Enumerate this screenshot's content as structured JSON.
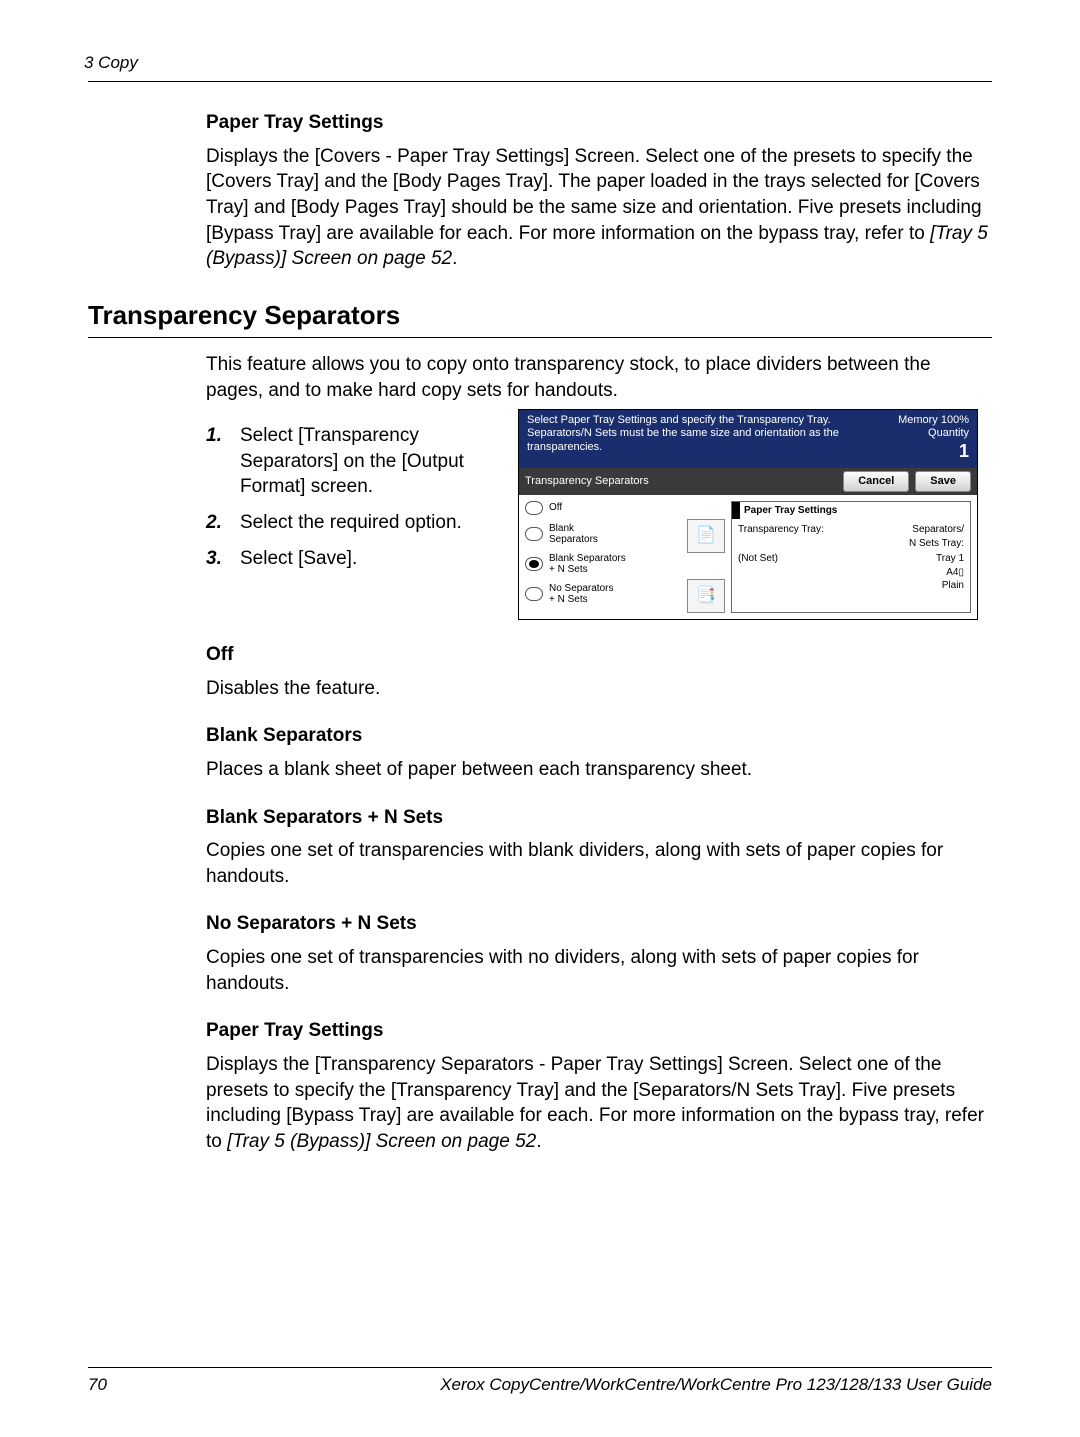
{
  "header": {
    "chapter": "3 Copy"
  },
  "pts1": {
    "heading": "Paper Tray Settings",
    "body": "Displays the [Covers - Paper Tray Settings] Screen. Select one of the presets to specify the [Covers Tray] and the [Body Pages Tray]. The paper loaded in the trays selected for [Covers Tray] and [Body Pages Tray] should be the same size and orientation. Five presets including [Bypass Tray] are available for each. For more information on the bypass tray, refer to ",
    "ref": "[Tray 5 (Bypass)] Screen on page 52",
    "tail": "."
  },
  "section": {
    "title": "Transparency Separators"
  },
  "intro": "This feature allows you to copy onto transparency stock, to place dividers between the pages, and to make hard copy sets for handouts.",
  "steps": [
    {
      "n": "1.",
      "t": "Select [Transparency Separators] on the [Output Format] screen."
    },
    {
      "n": "2.",
      "t": "Select the required option."
    },
    {
      "n": "3.",
      "t": "Select [Save]."
    }
  ],
  "screenshot": {
    "topText": "Select Paper Tray Settings and specify the Transparency Tray. Separators/N Sets must be the same size and orientation as the transparencies.",
    "memory": "Memory 100%",
    "quantityLabel": "Quantity",
    "quantityValue": "1",
    "barTitle": "Transparency Separators",
    "cancel": "Cancel",
    "save": "Save",
    "opts": {
      "off": "Off",
      "blank": "Blank\nSeparators",
      "blankN": "Blank Separators\n+ N Sets",
      "noSep": "No Separators\n+ N Sets"
    },
    "ptsHeader": "Paper Tray Settings",
    "row1k": "Transparency Tray:",
    "row1v": "Separators/\nN Sets Tray:",
    "row2k": "(Not Set)",
    "row2v": "Tray 1\nA4▯\nPlain"
  },
  "off": {
    "heading": "Off",
    "body": "Disables the feature."
  },
  "bs": {
    "heading": "Blank Separators",
    "body": "Places a blank sheet of paper between each transparency sheet."
  },
  "bsn": {
    "heading": "Blank Separators + N Sets",
    "body": "Copies one set of transparencies with blank dividers, along with sets of paper copies for handouts."
  },
  "nsn": {
    "heading": "No Separators + N Sets",
    "body": "Copies one set of transparencies with no dividers, along with sets of paper copies for handouts."
  },
  "pts2": {
    "heading": "Paper Tray Settings",
    "body": "Displays the [Transparency Separators - Paper Tray Settings] Screen. Select one of the presets to specify the [Transparency Tray] and the [Separators/N Sets Tray]. Five presets including [Bypass Tray] are available for each. For more information on the bypass tray, refer to ",
    "ref": "[Tray 5 (Bypass)] Screen on page 52",
    "tail": "."
  },
  "footer": {
    "page": "70",
    "guide": "Xerox CopyCentre/WorkCentre/WorkCentre Pro 123/128/133 User Guide"
  }
}
